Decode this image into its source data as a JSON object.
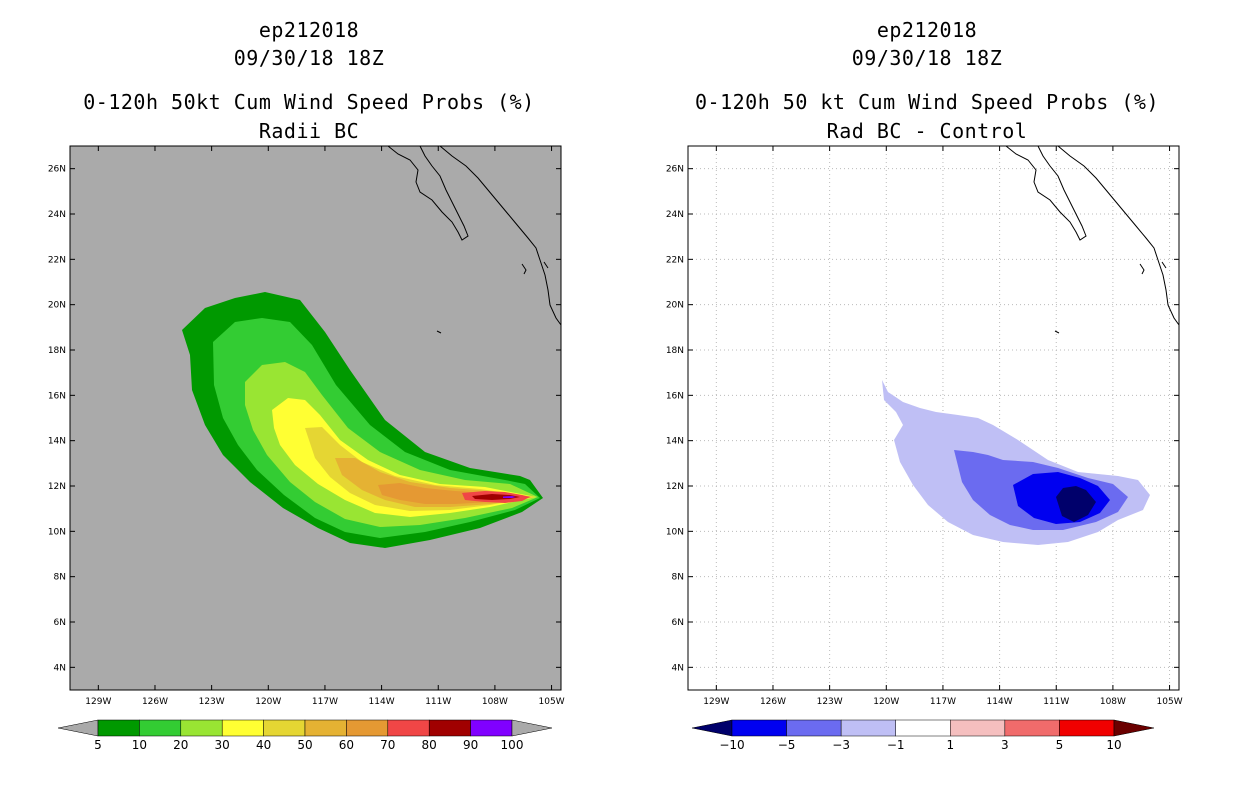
{
  "panels": [
    {
      "storm_id": "ep212018",
      "datetime": "09/30/18 18Z",
      "product": "0-120h 50kt Cum Wind Speed Probs (%)",
      "subtitle": "Radii BC",
      "background": "#aaaaaa",
      "colorbar": {
        "labels": [
          "5",
          "10",
          "20",
          "30",
          "40",
          "50",
          "60",
          "70",
          "80",
          "90",
          "100"
        ],
        "colors": [
          "#009900",
          "#33cc33",
          "#99e533",
          "#ffff33",
          "#e5d633",
          "#e5b233",
          "#e59933",
          "#f04646",
          "#a00000",
          "#8000ff"
        ],
        "low_arrow": "#aaaaaa",
        "high_arrow": "#aaaaaa"
      }
    },
    {
      "storm_id": "ep212018",
      "datetime": "09/30/18 18Z",
      "product": "0-120h 50 kt Cum Wind Speed Probs (%)",
      "subtitle": "Rad BC - Control",
      "background": "#ffffff",
      "colorbar": {
        "labels": [
          "−10",
          "−5",
          "−3",
          "−1",
          "1",
          "3",
          "5",
          "10"
        ],
        "colors": [
          "#0000f0",
          "#6b6bf0",
          "#bfbff5",
          "#ffffff",
          "#f5bfbf",
          "#f06b6b",
          "#f00000"
        ],
        "low_arrow": "#00006b",
        "high_arrow": "#6b0000"
      }
    }
  ],
  "map_axes": {
    "lon_labels": [
      "129W",
      "126W",
      "123W",
      "120W",
      "117W",
      "114W",
      "111W",
      "108W",
      "105W"
    ],
    "lat_labels": [
      "26N",
      "24N",
      "22N",
      "20N",
      "18N",
      "16N",
      "14N",
      "12N",
      "10N",
      "8N",
      "6N",
      "4N"
    ],
    "lon_range": [
      "130.5W",
      "104.5W"
    ],
    "lat_range": [
      "3N",
      "27N"
    ]
  },
  "colors": {
    "coastline": "#000000",
    "grid": "#bbbbbb"
  }
}
